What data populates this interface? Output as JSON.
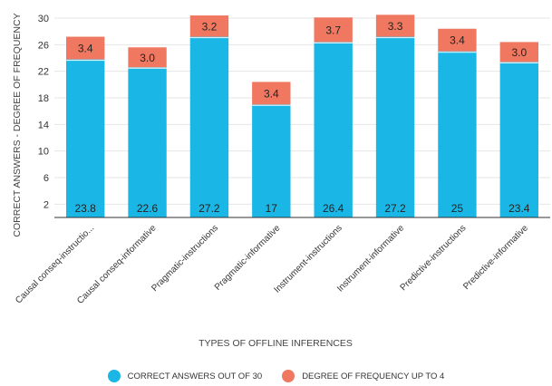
{
  "chart_data": {
    "type": "bar",
    "stacked": true,
    "categories": [
      "Causal conseq-instructio...",
      "Causal conseq-informative",
      "Pragmatic-instructions",
      "Pragmatic-informative",
      "Instrument-instructions",
      "Instrument-informative",
      "Predictive-instructions",
      "Predictive-informative"
    ],
    "series": [
      {
        "name": "CORRECT ANSWERS OUT OF 30",
        "values": [
          23.8,
          22.6,
          27.2,
          17,
          26.4,
          27.2,
          25,
          23.4
        ],
        "labels": [
          "23.8",
          "22.6",
          "27.2",
          "17",
          "26.4",
          "27.2",
          "25",
          "23.4"
        ],
        "color": "#1ab7e6"
      },
      {
        "name": "DEGREE OF FREQUENCY UP TO 4",
        "values": [
          3.4,
          3.0,
          3.2,
          3.4,
          3.7,
          3.3,
          3.4,
          3.0
        ],
        "labels": [
          "3.4",
          "3.0",
          "3.2",
          "3.4",
          "3.7",
          "3.3",
          "3.4",
          "3.0"
        ],
        "color": "#f07860"
      }
    ],
    "xlabel": "TYPES OF OFFLINE INFERENCES",
    "ylabel": "CORRECT ANSWERS - DEGREE OF FREQUENCY",
    "ylim": [
      0,
      30
    ],
    "yticks": [
      "2",
      "6",
      "10",
      "14",
      "18",
      "22",
      "26",
      "30"
    ],
    "ytick_values": [
      2,
      6,
      10,
      14,
      18,
      22,
      26,
      30
    ],
    "grid": true,
    "legend_position": "bottom"
  }
}
